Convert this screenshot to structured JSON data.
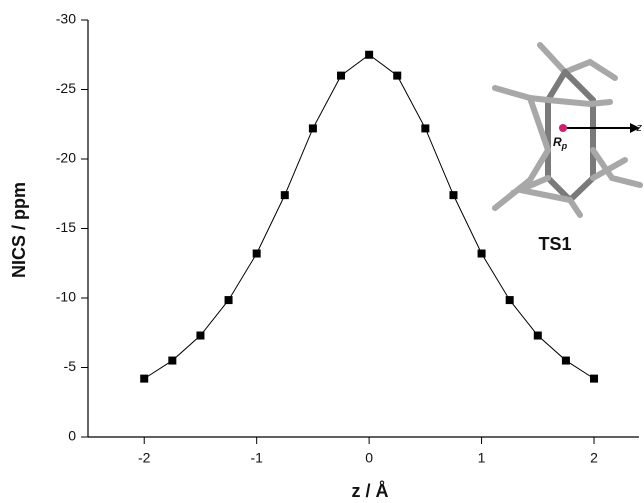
{
  "chart_data": {
    "type": "line",
    "x_label": "z / Å",
    "y_label": "NICS / ppm",
    "x": [
      -2,
      -1.75,
      -1.5,
      -1.25,
      -1,
      -0.75,
      -0.5,
      -0.25,
      0,
      0.25,
      0.5,
      0.75,
      1,
      1.25,
      1.5,
      1.75,
      2
    ],
    "series": [
      {
        "color": "#000000",
        "values": [
          -4.2,
          -5.5,
          -7.3,
          -9.85,
          -13.2,
          -17.4,
          -22.2,
          -26.0,
          -27.5,
          -26.0,
          -22.2,
          -17.4,
          -13.2,
          -9.85,
          -7.3,
          -5.5,
          -4.2
        ]
      }
    ],
    "xlim": [
      -2.5,
      2.4
    ],
    "xticks": [
      -2,
      -1,
      0,
      1,
      2
    ],
    "ylim": [
      0,
      -30
    ],
    "yticks": [
      0,
      -5,
      -10,
      -15,
      -20,
      -25,
      -30
    ],
    "inset": {
      "molecule": "TS1",
      "ring_point": "R",
      "ring_point_subscript": "p",
      "axis": "z"
    }
  }
}
